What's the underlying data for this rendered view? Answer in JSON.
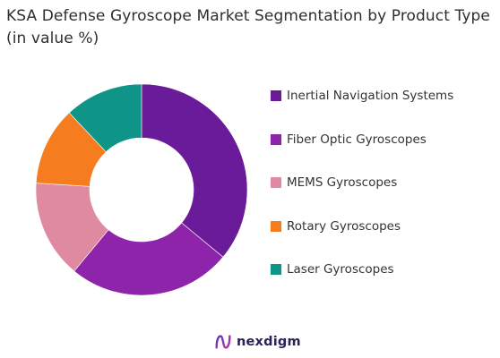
{
  "title": "KSA Defense Gyroscope Market Segmentation by Product Type (in value %)",
  "brand": {
    "name": "nexdigm",
    "icon": "nexdigm-logo-icon",
    "colors": [
      "#5b2fc9",
      "#c0399a"
    ]
  },
  "chart_data": {
    "type": "pie",
    "donut": true,
    "title": "KSA Defense Gyroscope Market Segmentation by Product Type (in value %)",
    "legend_position": "right",
    "categories": [
      "Inertial Navigation Systems",
      "Fiber Optic Gyroscopes",
      "MEMS Gyroscopes",
      "Rotary Gyroscopes",
      "Laser Gyroscopes"
    ],
    "values": [
      36,
      25,
      15,
      12,
      12
    ],
    "colors": [
      "#6a1b9a",
      "#8e24aa",
      "#e08aa1",
      "#f57c1f",
      "#0f9488"
    ],
    "start_angle_deg": 0,
    "direction": "clockwise"
  }
}
